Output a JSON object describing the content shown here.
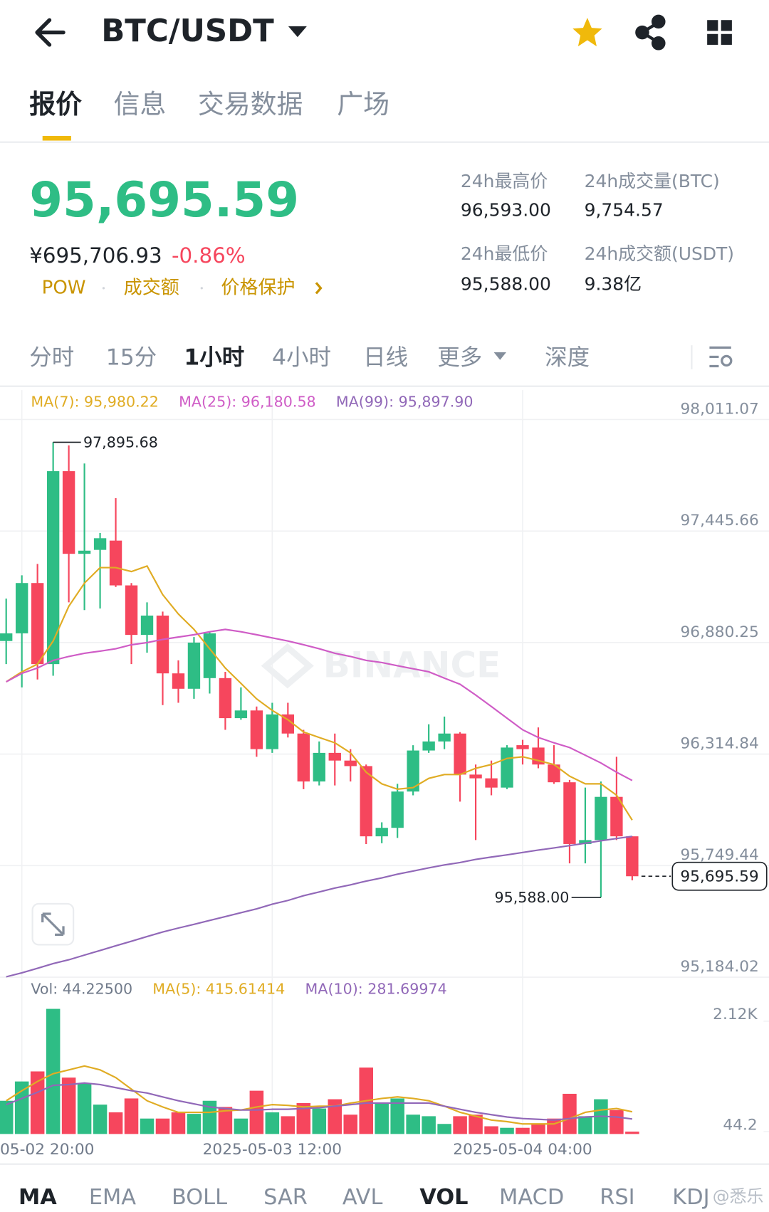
{
  "header": {
    "title": "BTC/USDT"
  },
  "tabs": [
    "报价",
    "信息",
    "交易数据",
    "广场"
  ],
  "price": {
    "last": "95,695.59",
    "cny": "¥695,706.93",
    "change": "-0.86%",
    "links": [
      "POW",
      "成交额",
      "价格保护"
    ]
  },
  "stats": [
    {
      "label": "24h最高价",
      "value": "96,593.00"
    },
    {
      "label": "24h成交量(BTC)",
      "value": "9,754.57"
    },
    {
      "label": "24h最低价",
      "value": "95,588.00"
    },
    {
      "label": "24h成交额(USDT)",
      "value": "9.38亿"
    }
  ],
  "intervals": [
    "分时",
    "15分",
    "1小时",
    "4小时",
    "日线",
    "更多",
    "深度"
  ],
  "indicators": [
    "MA",
    "EMA",
    "BOLL",
    "SAR",
    "AVL",
    "VOL",
    "MACD",
    "RSI",
    "KDJ"
  ],
  "watermarks": [
    "BINANCE",
    "@悉乐"
  ],
  "chart_data": [
    {
      "type": "candlestick",
      "categories": [
        null,
        "05-02 20:00",
        null,
        null,
        null,
        null,
        null,
        null,
        null,
        null,
        null,
        null,
        null,
        null,
        null,
        null,
        null,
        "2025-05-03 12:00",
        null,
        null,
        null,
        null,
        null,
        null,
        null,
        null,
        null,
        null,
        null,
        null,
        null,
        null,
        null,
        "2025-05-04 04:00",
        null,
        null,
        null,
        null,
        null,
        null,
        null
      ],
      "open": [
        96888,
        96927,
        97182,
        96771,
        97749,
        97330,
        97350,
        97397,
        97170,
        96919,
        97017,
        96724,
        96646,
        96700,
        96700,
        96497,
        96536,
        96340,
        96516,
        96419,
        96176,
        96321,
        96282,
        96254,
        95898,
        95941,
        96125,
        96333,
        96379,
        96419,
        96211,
        96192,
        96145,
        96360,
        96348,
        96262,
        96172,
        95859,
        95879,
        96098,
        95898
      ],
      "high": [
        97103,
        97221,
        97279,
        97895.68,
        97880,
        97788,
        97436,
        97612,
        97182,
        97084,
        97037,
        96790,
        96908,
        96935,
        96732,
        96653,
        96556,
        96575,
        96575,
        96438,
        96379,
        96419,
        96340,
        96262,
        95969,
        96164,
        96360,
        96466,
        96505,
        96426,
        96262,
        96282,
        96360,
        96387,
        96450,
        96360,
        96184,
        96145,
        96176,
        96301,
        95898
      ],
      "low": [
        96771,
        96653,
        96693,
        96712,
        97084,
        97045,
        97053,
        97162,
        96771,
        96829,
        96563,
        96575,
        96595,
        96622,
        96438,
        96489,
        96301,
        96321,
        96399,
        96137,
        96156,
        96156,
        96176,
        95859,
        95863,
        95890,
        96106,
        96321,
        96340,
        96074,
        95879,
        96106,
        96137,
        96262,
        96243,
        96164,
        95761,
        95761,
        95588.0,
        95879,
        95675
      ],
      "close": [
        96927,
        97182,
        96771,
        97749,
        97330,
        97346,
        97409,
        97170,
        96919,
        97017,
        96724,
        96646,
        96880,
        96927,
        96497,
        96536,
        96340,
        96516,
        96419,
        96176,
        96321,
        96282,
        96254,
        95898,
        95941,
        96125,
        96333,
        96379,
        96419,
        96211,
        96192,
        96145,
        96348,
        96340,
        96262,
        96172,
        95859,
        95879,
        96098,
        95898,
        95695.59
      ],
      "up_color": "#2ebd85",
      "down_color": "#f6465d",
      "series": [
        {
          "name": "MA(7): 95,980.22",
          "color": "#e0ac24",
          "values": [
            96681,
            96732,
            96771,
            96888,
            97064,
            97182,
            97260,
            97260,
            97240,
            97268,
            97123,
            97025,
            96947,
            96849,
            96751,
            96673,
            96595,
            96536,
            96489,
            96427,
            96399,
            96372,
            96321,
            96223,
            96164,
            96137,
            96145,
            96192,
            96211,
            96211,
            96243,
            96262,
            96293,
            96301,
            96282,
            96262,
            96203,
            96164,
            96164,
            96106,
            95980
          ]
        },
        {
          "name": "MA(25): 96,180.58",
          "color": "#cf5cc6",
          "values": [
            96681,
            96724,
            96751,
            96790,
            96810,
            96826,
            96837,
            96849,
            96869,
            96880,
            96896,
            96908,
            96920,
            96935,
            96947,
            96935,
            96920,
            96904,
            96888,
            96869,
            96849,
            96826,
            96810,
            96790,
            96779,
            96763,
            96747,
            96732,
            96700,
            96669,
            96614,
            96556,
            96497,
            96438,
            96399,
            96372,
            96348,
            96309,
            96270,
            96223,
            96181
          ]
        },
        {
          "name": "MA(99): 95,897.90",
          "color": "#9168b8",
          "values": [
            95186,
            95206,
            95229,
            95253,
            95272,
            95296,
            95319,
            95343,
            95366,
            95390,
            95413,
            95433,
            95452,
            95472,
            95491,
            95511,
            95530,
            95554,
            95573,
            95597,
            95616,
            95636,
            95652,
            95671,
            95687,
            95706,
            95722,
            95738,
            95753,
            95765,
            95781,
            95793,
            95804,
            95816,
            95828,
            95839,
            95851,
            95863,
            95875,
            95887,
            95898
          ]
        }
      ],
      "ylim": [
        95184.02,
        98160
      ],
      "yticks": [
        {
          "value": 98011.07,
          "label": "98,011.07"
        },
        {
          "value": 97445.66,
          "label": "97,445.66"
        },
        {
          "value": 96880.25,
          "label": "96,880.25"
        },
        {
          "value": 96314.84,
          "label": "96,314.84"
        },
        {
          "value": 95749.44,
          "label": "95,749.44"
        },
        {
          "value": 95184.02,
          "label": "95,184.02"
        }
      ],
      "grid": true,
      "annotations": [
        {
          "value": 97895.68,
          "label": "97,895.68"
        },
        {
          "value": 95588.0,
          "label": "95,588.00"
        },
        {
          "value": 95695.59,
          "label": "95,695.59"
        }
      ]
    },
    {
      "type": "bar",
      "series": [
        {
          "name": "Vol: 44.22500",
          "color": "#707a8a",
          "values": [
            624,
            987,
            1176,
            2352,
            1060,
            944,
            552,
            407,
            668,
            290,
            290,
            407,
            378,
            624,
            508,
            290,
            813,
            407,
            334,
            581,
            479,
            653,
            363,
            1249,
            581,
            668,
            363,
            334,
            189,
            334,
            363,
            145,
            116,
            116,
            189,
            290,
            755,
            334,
            653,
            450,
            44.225
          ]
        },
        {
          "name": "MA(5): 415.61414",
          "color": "#e0ac24",
          "values": [
            624,
            813,
            987,
            1133,
            1205,
            1278,
            1205,
            1060,
            842,
            624,
            508,
            407,
            407,
            407,
            436,
            450,
            508,
            552,
            537,
            508,
            523,
            523,
            581,
            624,
            668,
            697,
            668,
            624,
            523,
            407,
            334,
            261,
            232,
            189,
            189,
            189,
            290,
            407,
            450,
            479,
            416
          ]
        },
        {
          "name": "MA(10): 281.69974",
          "color": "#9168b8",
          "values": [
            552,
            668,
            784,
            915,
            929,
            958,
            929,
            871,
            813,
            770,
            697,
            624,
            566,
            508,
            479,
            450,
            450,
            465,
            465,
            479,
            494,
            523,
            552,
            581,
            581,
            581,
            581,
            581,
            523,
            465,
            407,
            363,
            319,
            290,
            276,
            261,
            290,
            319,
            334,
            319,
            282
          ]
        }
      ],
      "ylim": [
        0,
        2904
      ],
      "yticks": [
        44.2,
        {
          "value": 2120,
          "label": "2.12K"
        }
      ]
    }
  ]
}
